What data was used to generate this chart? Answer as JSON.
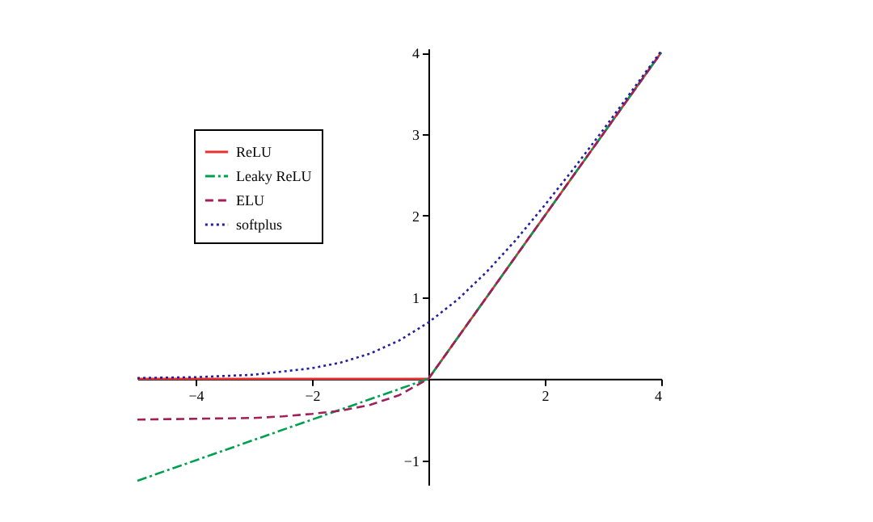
{
  "chart_data": {
    "type": "line",
    "xlim": [
      -5,
      4
    ],
    "ylim": [
      -1.3,
      4.05
    ],
    "xticks": [
      -4,
      -2,
      2,
      4
    ],
    "yticks": [
      -1,
      1,
      2,
      3,
      4
    ],
    "grid": false,
    "legend": "top left",
    "marker": "none",
    "series": [
      {
        "name": "ReLU",
        "color": "#e8312f",
        "line_style": "solid",
        "x": [
          -5,
          0,
          4
        ],
        "values": [
          0,
          0,
          4
        ]
      },
      {
        "name": "Leaky ReLU",
        "color": "#00a050",
        "line_style": "dashdot",
        "x": [
          -5,
          0,
          4
        ],
        "values": [
          -1.25,
          0,
          4
        ]
      },
      {
        "name": "ELU",
        "color": "#a0205a",
        "line_style": "dashed",
        "x": [
          -5,
          -4,
          -3,
          -2.5,
          -2,
          -1.5,
          -1,
          -0.5,
          0,
          4
        ],
        "values": [
          -0.5,
          -0.49,
          -0.48,
          -0.46,
          -0.43,
          -0.39,
          -0.32,
          -0.2,
          0,
          4
        ]
      },
      {
        "name": "softplus",
        "color": "#2020a0",
        "line_style": "dotted",
        "x": [
          -5,
          -4,
          -3,
          -2,
          -1.5,
          -1,
          -0.5,
          0,
          0.5,
          1,
          1.5,
          2,
          2.5,
          3,
          4
        ],
        "values": [
          0.01,
          0.02,
          0.05,
          0.13,
          0.2,
          0.31,
          0.47,
          0.69,
          0.97,
          1.31,
          1.7,
          2.13,
          2.58,
          3.05,
          4.02
        ]
      }
    ]
  }
}
